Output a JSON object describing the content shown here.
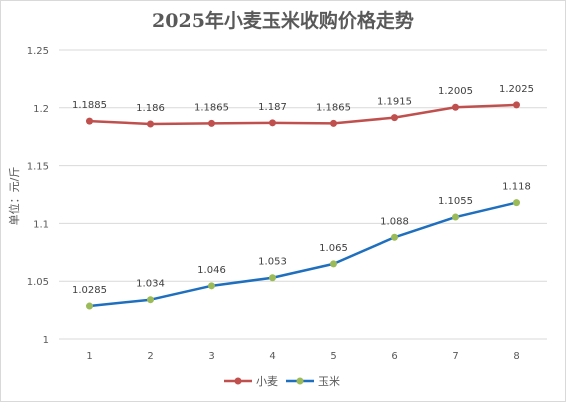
{
  "chart_data": {
    "type": "line",
    "title": "2025年小麦玉米收购价格走势",
    "xlabel": "",
    "ylabel": "单位：元/斤",
    "categories": [
      "1",
      "2",
      "3",
      "4",
      "5",
      "6",
      "7",
      "8"
    ],
    "ylim": [
      1,
      1.25
    ],
    "yticks": [
      "1",
      "1.05",
      "1.1",
      "1.15",
      "1.2",
      "1.25"
    ],
    "grid": true,
    "legend_position": "bottom",
    "series": [
      {
        "name": "小麦",
        "color": "#c0504d",
        "values": [
          1.1885,
          1.186,
          1.1865,
          1.187,
          1.1865,
          1.1915,
          1.2005,
          1.2025
        ],
        "labels": [
          "1.1885",
          "1.186",
          "1.1865",
          "1.187",
          "1.1865",
          "1.1915",
          "1.2005",
          "1.2025"
        ]
      },
      {
        "name": "玉米",
        "color": "#1f6fbf",
        "marker_color": "#9bbb59",
        "values": [
          1.0285,
          1.034,
          1.046,
          1.053,
          1.065,
          1.088,
          1.1055,
          1.118
        ],
        "labels": [
          "1.0285",
          "1.034",
          "1.046",
          "1.053",
          "1.065",
          "1.088",
          "1.1055",
          "1.118"
        ]
      }
    ]
  }
}
